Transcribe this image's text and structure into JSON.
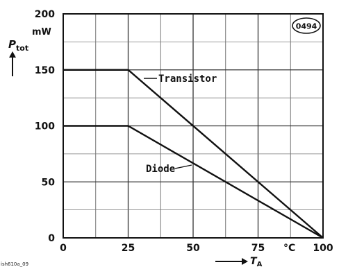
{
  "chart_data": {
    "type": "line",
    "code": "0494",
    "footer_id": "ish610a_09",
    "x": [
      0,
      25,
      50,
      75,
      100
    ],
    "x_tick_labels": [
      "0",
      "25",
      "50",
      "75",
      "100"
    ],
    "xlim": [
      0,
      100
    ],
    "x_unit": "°C",
    "xlabel": "T",
    "xlabel_sub": "A",
    "y_tick_labels": [
      "0",
      "50",
      "100",
      "150",
      "200"
    ],
    "ylim": [
      0,
      200
    ],
    "y_unit": "mW",
    "ylabel": "P",
    "ylabel_sub": "tot",
    "grid": true,
    "series": [
      {
        "name": "Transistor",
        "x": [
          0,
          25,
          100
        ],
        "y": [
          150,
          150,
          0
        ]
      },
      {
        "name": "Diode",
        "x": [
          0,
          25,
          100
        ],
        "y": [
          100,
          100,
          0
        ]
      }
    ]
  }
}
